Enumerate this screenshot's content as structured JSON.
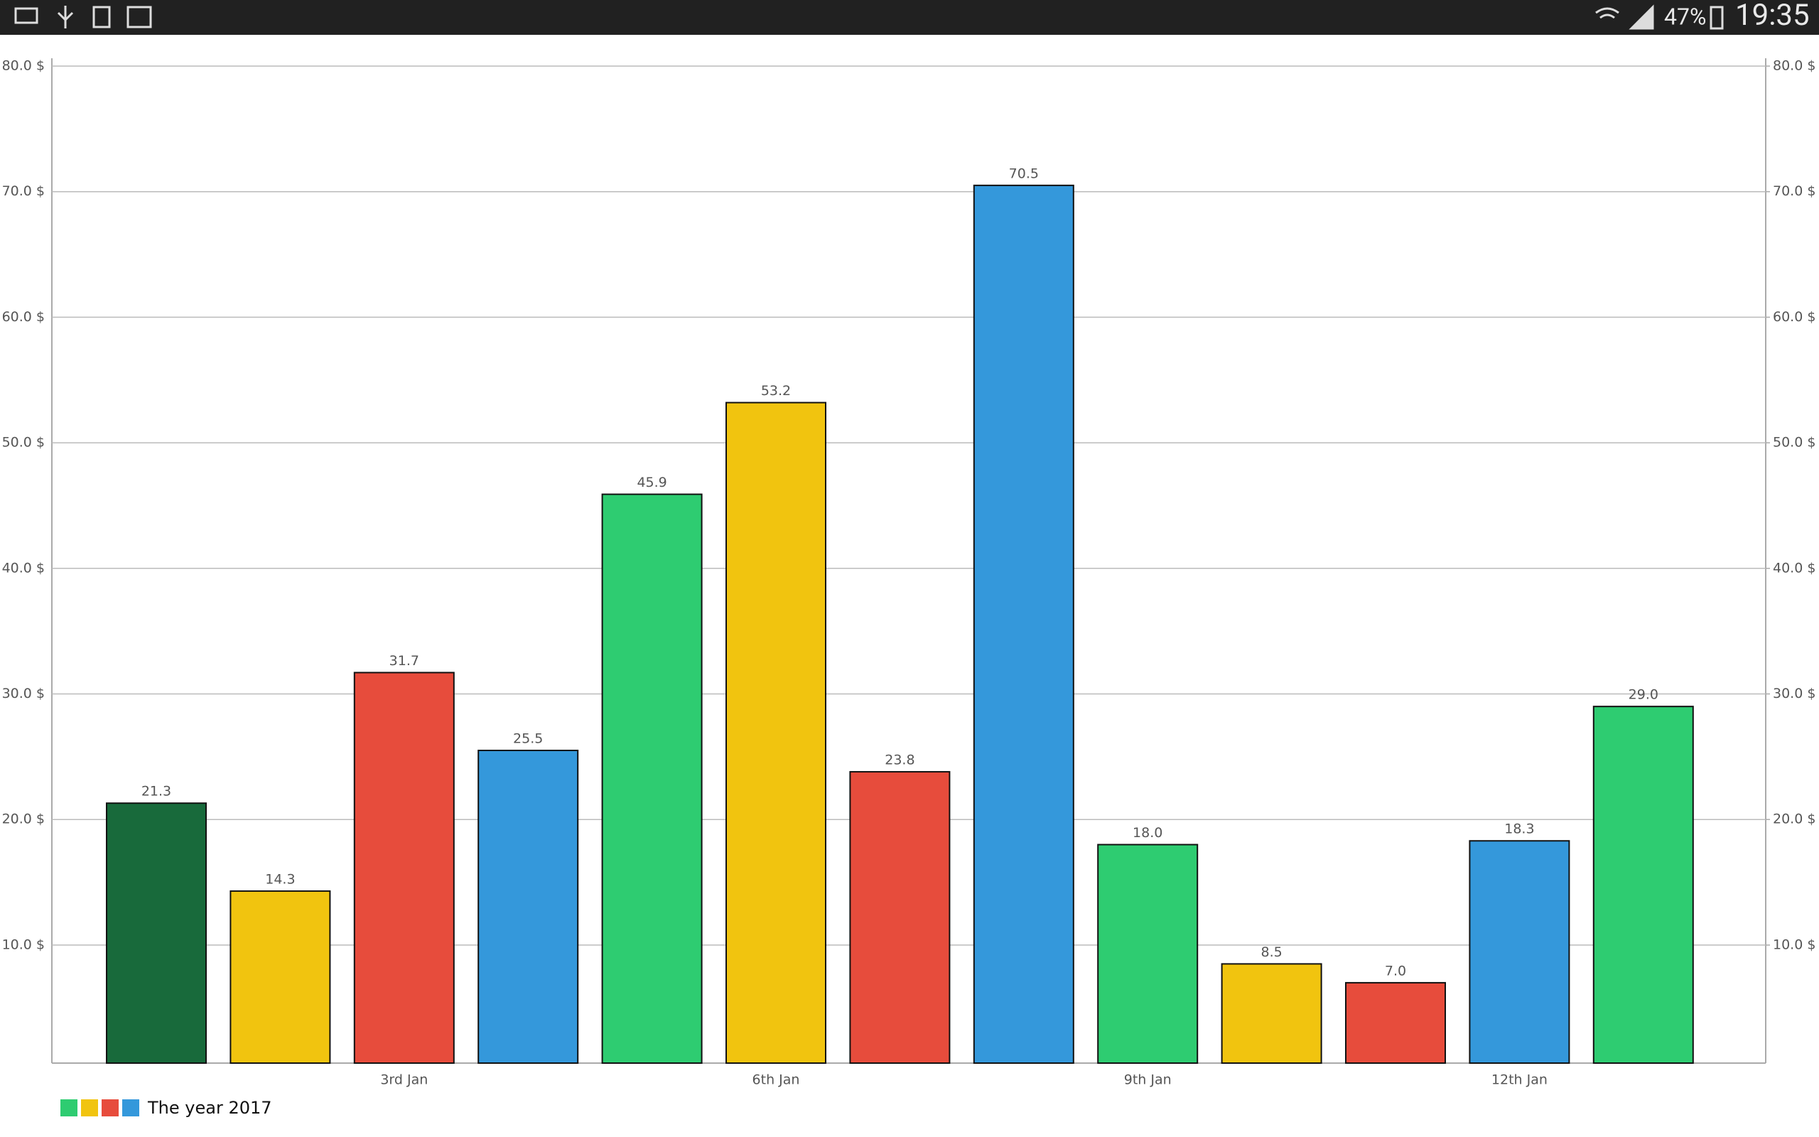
{
  "status_bar": {
    "battery": "47%",
    "time": "19:35"
  },
  "chart_data": {
    "type": "bar",
    "categories": [
      null,
      null,
      "3rd Jan",
      null,
      null,
      "6th Jan",
      null,
      null,
      "9th Jan",
      null,
      null,
      "12th Jan",
      null
    ],
    "values": [
      21.3,
      14.3,
      31.7,
      25.5,
      45.9,
      53.2,
      23.8,
      70.5,
      18.0,
      8.5,
      7.0,
      18.3,
      29.0
    ],
    "value_labels": [
      "21.3",
      "14.3",
      "31.7",
      "25.5",
      "45.9",
      "53.2",
      "23.8",
      "70.5",
      "18.0",
      "8.5",
      "7.0",
      "18.3",
      "29.0"
    ],
    "colors": [
      "#186a3b",
      "#f1c40f",
      "#e74c3c",
      "#3498db",
      "#2ecc71",
      "#f1c40f",
      "#e74c3c",
      "#3498db",
      "#2ecc71",
      "#f1c40f",
      "#e74c3c",
      "#3498db",
      "#2ecc71"
    ],
    "legend": {
      "label": "The year 2017",
      "colors": [
        "#2ecc71",
        "#f1c40f",
        "#e74c3c",
        "#3498db"
      ]
    },
    "ylim": [
      0.6,
      80
    ],
    "yticks": [
      {
        "value": 10,
        "label": "10.0 $"
      },
      {
        "value": 20,
        "label": "20.0 $"
      },
      {
        "value": 30,
        "label": "30.0 $"
      },
      {
        "value": 40,
        "label": "40.0 $"
      },
      {
        "value": 50,
        "label": "50.0 $"
      },
      {
        "value": 60,
        "label": "60.0 $"
      },
      {
        "value": 70,
        "label": "70.0 $"
      },
      {
        "value": 80,
        "label": "80.0 $"
      }
    ],
    "y2lim": [
      0.6,
      80
    ],
    "y2ticks": [
      {
        "value": 10,
        "label": "10.0 $"
      },
      {
        "value": 20,
        "label": "20.0 $"
      },
      {
        "value": 30,
        "label": "30.0 $"
      },
      {
        "value": 40,
        "label": "40.0 $"
      },
      {
        "value": 50,
        "label": "50.0 $"
      },
      {
        "value": 60,
        "label": "60.0 $"
      },
      {
        "value": 70,
        "label": "70.0 $"
      },
      {
        "value": 80,
        "label": "80.0 $"
      }
    ],
    "grid": true
  }
}
